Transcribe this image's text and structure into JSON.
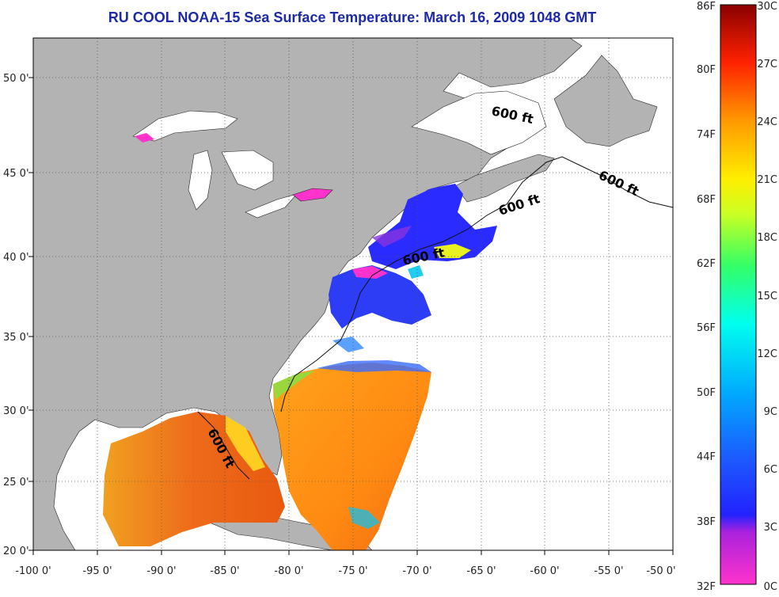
{
  "title": "RU COOL  NOAA-15  Sea Surface Temperature:  March 16, 2009 1048 GMT",
  "x_ticks": [
    "-100 0'",
    "-95 0'",
    "-90 0'",
    "-85 0'",
    "-80 0'",
    "-75 0'",
    "-70 0'",
    "-65 0'",
    "-60 0'",
    "-55 0'",
    "-50 0'"
  ],
  "y_ticks": [
    "50 0'",
    "45 0'",
    "40 0'",
    "35 0'",
    "30 0'",
    "25 0'",
    "20 0'"
  ],
  "contour_label": "600 ft",
  "colorbar": {
    "fahrenheit": [
      "86F",
      "80F",
      "74F",
      "68F",
      "62F",
      "56F",
      "50F",
      "44F",
      "38F",
      "32F"
    ],
    "celsius": [
      "30C",
      "27C",
      "24C",
      "21C",
      "18C",
      "15C",
      "12C",
      "9C",
      "6C",
      "3C",
      "0C"
    ]
  },
  "colors": {
    "land": "#b3b3b3",
    "ocean_nodata": "#ffffff",
    "title": "#1c2aa8"
  }
}
